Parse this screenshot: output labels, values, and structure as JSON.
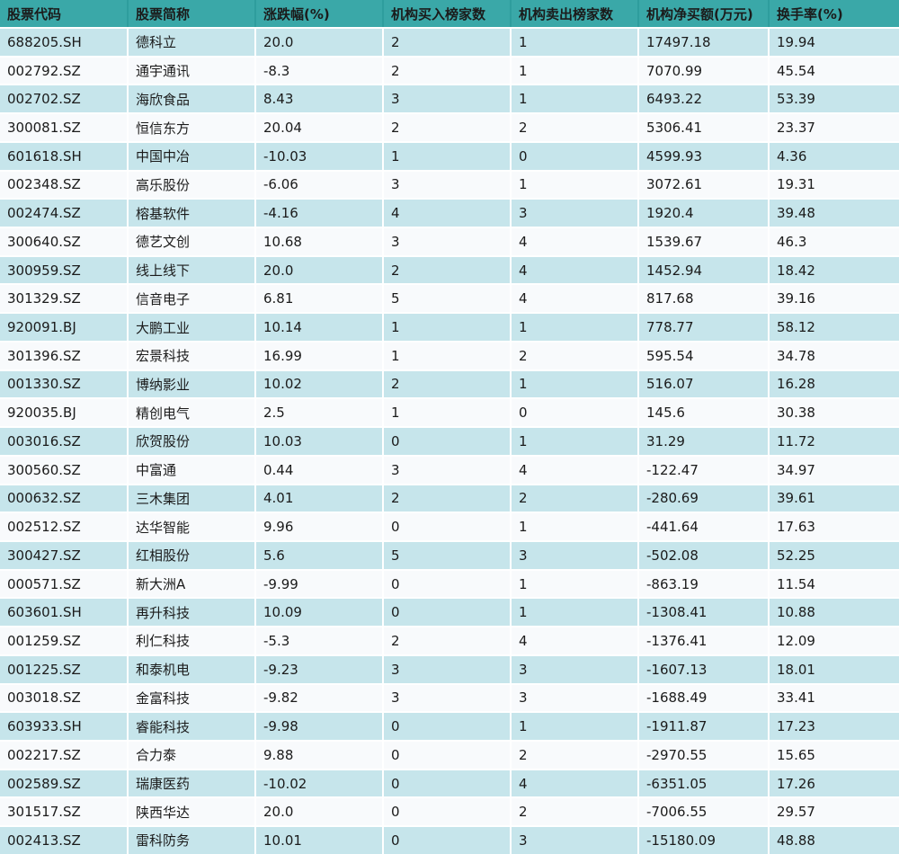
{
  "table": {
    "columns": [
      {
        "key": "stock_code",
        "label": "股票代码"
      },
      {
        "key": "stock_name",
        "label": "股票简称"
      },
      {
        "key": "change_pct",
        "label": "涨跌幅(%)"
      },
      {
        "key": "inst_buy_count",
        "label": "机构买入榜家数"
      },
      {
        "key": "inst_sell_count",
        "label": "机构卖出榜家数"
      },
      {
        "key": "inst_net_buy",
        "label": "机构净买额(万元)"
      },
      {
        "key": "turnover_pct",
        "label": "换手率(%)"
      }
    ],
    "rows": [
      [
        "688205.SH",
        "德科立",
        "20.0",
        "2",
        "1",
        "17497.18",
        "19.94"
      ],
      [
        "002792.SZ",
        "通宇通讯",
        "-8.3",
        "2",
        "1",
        "7070.99",
        "45.54"
      ],
      [
        "002702.SZ",
        "海欣食品",
        "8.43",
        "3",
        "1",
        "6493.22",
        "53.39"
      ],
      [
        "300081.SZ",
        "恒信东方",
        "20.04",
        "2",
        "2",
        "5306.41",
        "23.37"
      ],
      [
        "601618.SH",
        "中国中冶",
        "-10.03",
        "1",
        "0",
        "4599.93",
        "4.36"
      ],
      [
        "002348.SZ",
        "高乐股份",
        "-6.06",
        "3",
        "1",
        "3072.61",
        "19.31"
      ],
      [
        "002474.SZ",
        "榕基软件",
        "-4.16",
        "4",
        "3",
        "1920.4",
        "39.48"
      ],
      [
        "300640.SZ",
        "德艺文创",
        "10.68",
        "3",
        "4",
        "1539.67",
        "46.3"
      ],
      [
        "300959.SZ",
        "线上线下",
        "20.0",
        "2",
        "4",
        "1452.94",
        "18.42"
      ],
      [
        "301329.SZ",
        "信音电子",
        "6.81",
        "5",
        "4",
        "817.68",
        "39.16"
      ],
      [
        "920091.BJ",
        "大鹏工业",
        "10.14",
        "1",
        "1",
        "778.77",
        "58.12"
      ],
      [
        "301396.SZ",
        "宏景科技",
        "16.99",
        "1",
        "2",
        "595.54",
        "34.78"
      ],
      [
        "001330.SZ",
        "博纳影业",
        "10.02",
        "2",
        "1",
        "516.07",
        "16.28"
      ],
      [
        "920035.BJ",
        "精创电气",
        "2.5",
        "1",
        "0",
        "145.6",
        "30.38"
      ],
      [
        "003016.SZ",
        "欣贺股份",
        "10.03",
        "0",
        "1",
        "31.29",
        "11.72"
      ],
      [
        "300560.SZ",
        "中富通",
        "0.44",
        "3",
        "4",
        "-122.47",
        "34.97"
      ],
      [
        "000632.SZ",
        "三木集团",
        "4.01",
        "2",
        "2",
        "-280.69",
        "39.61"
      ],
      [
        "002512.SZ",
        "达华智能",
        "9.96",
        "0",
        "1",
        "-441.64",
        "17.63"
      ],
      [
        "300427.SZ",
        "红相股份",
        "5.6",
        "5",
        "3",
        "-502.08",
        "52.25"
      ],
      [
        "000571.SZ",
        "新大洲A",
        "-9.99",
        "0",
        "1",
        "-863.19",
        "11.54"
      ],
      [
        "603601.SH",
        "再升科技",
        "10.09",
        "0",
        "1",
        "-1308.41",
        "10.88"
      ],
      [
        "001259.SZ",
        "利仁科技",
        "-5.3",
        "2",
        "4",
        "-1376.41",
        "12.09"
      ],
      [
        "001225.SZ",
        "和泰机电",
        "-9.23",
        "3",
        "3",
        "-1607.13",
        "18.01"
      ],
      [
        "003018.SZ",
        "金富科技",
        "-9.82",
        "3",
        "3",
        "-1688.49",
        "33.41"
      ],
      [
        "603933.SH",
        "睿能科技",
        "-9.98",
        "0",
        "1",
        "-1911.87",
        "17.23"
      ],
      [
        "002217.SZ",
        "合力泰",
        "9.88",
        "0",
        "2",
        "-2970.55",
        "15.65"
      ],
      [
        "002589.SZ",
        "瑞康医药",
        "-10.02",
        "0",
        "4",
        "-6351.05",
        "17.26"
      ],
      [
        "301517.SZ",
        "陕西华达",
        "20.0",
        "0",
        "2",
        "-7006.55",
        "29.57"
      ],
      [
        "002413.SZ",
        "雷科防务",
        "10.01",
        "0",
        "3",
        "-15180.09",
        "48.88"
      ]
    ]
  },
  "colors": {
    "header_bg": "#3AA8A8",
    "header_divider": "#2E9D9D",
    "header_text": "#FFFFFF",
    "row_alt_bg": "#C6E5EB",
    "row_plain_bg": "#F8FAFC",
    "row_gap": "#FFFFFF",
    "body_text": "#1B1B1B"
  }
}
